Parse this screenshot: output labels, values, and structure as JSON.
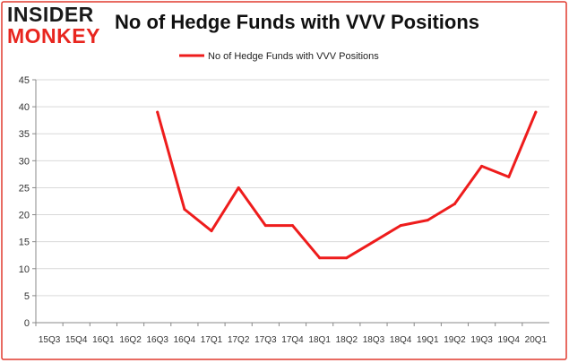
{
  "logo": {
    "line1": "INSIDER",
    "line2": "MONKEY"
  },
  "chart_data": {
    "type": "line",
    "title": "No of Hedge Funds with VVV Positions",
    "xlabel": "",
    "ylabel": "",
    "categories": [
      "15Q3",
      "15Q4",
      "16Q1",
      "16Q2",
      "16Q3",
      "16Q4",
      "17Q1",
      "17Q2",
      "17Q3",
      "17Q4",
      "18Q1",
      "18Q2",
      "18Q3",
      "18Q4",
      "19Q1",
      "19Q2",
      "19Q3",
      "19Q4",
      "20Q1"
    ],
    "series": [
      {
        "name": "No of Hedge Funds with VVV Positions",
        "color": "#ee1c1c",
        "values": [
          null,
          null,
          null,
          null,
          39,
          21,
          17,
          25,
          18,
          18,
          12,
          12,
          15,
          18,
          19,
          22,
          29,
          27,
          39
        ]
      }
    ],
    "yticks": [
      0,
      5,
      10,
      15,
      20,
      25,
      30,
      35,
      40,
      45
    ],
    "ylim": [
      0,
      45
    ],
    "grid": true,
    "legend_position": "top-center"
  }
}
